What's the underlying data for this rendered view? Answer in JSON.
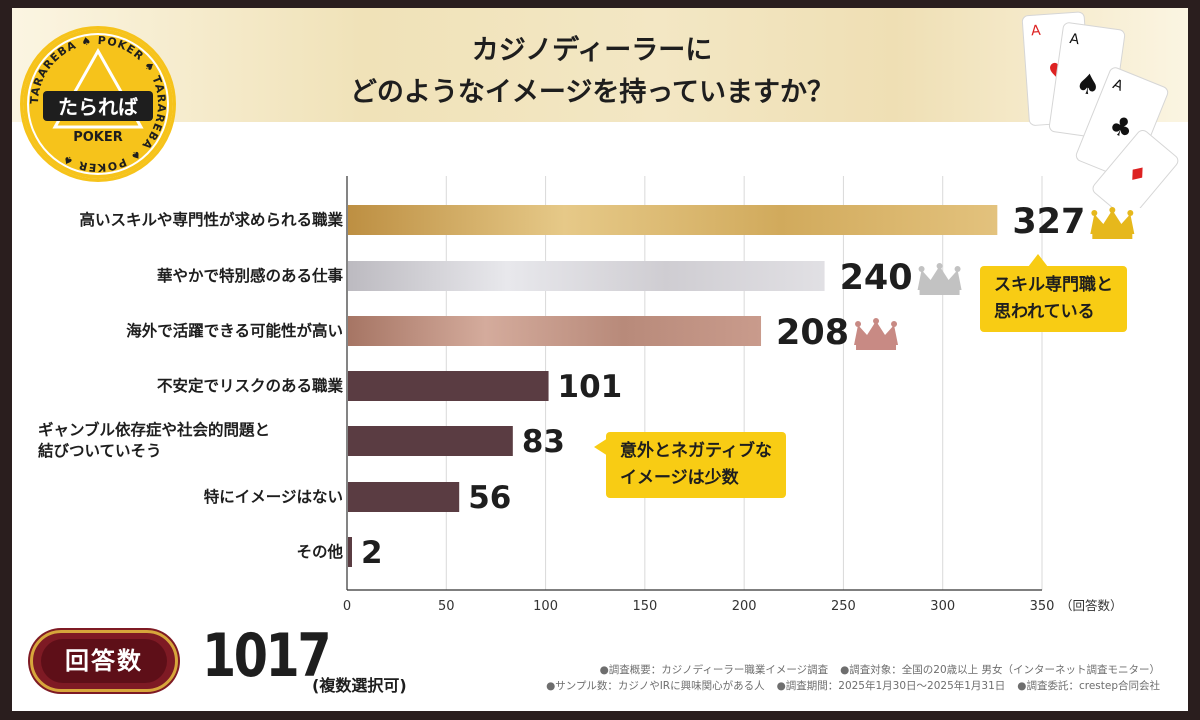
{
  "title": {
    "line1": "カジノディーラーに",
    "line2": "どのようなイメージを持っていますか？"
  },
  "logo": {
    "text": "たられば",
    "sub": "POKER",
    "ring_text": "TARAREBA ♠ POKER ♠ TARAREBA ♠ POKER ♠"
  },
  "chart_data": {
    "type": "bar",
    "orientation": "horizontal",
    "categories": [
      "高いスキルや専門性が求められる職業",
      "華やかで特別感のある仕事",
      "海外で活躍できる可能性が高い",
      "不安定でリスクのある職業",
      "ギャンブル依存症や社会的問題と結びついていそう",
      "特にイメージはない",
      "その他"
    ],
    "category_lines": [
      [
        "高いスキルや専門性が求められる職業"
      ],
      [
        "華やかで特別感のある仕事"
      ],
      [
        "海外で活躍できる可能性が高い"
      ],
      [
        "不安定でリスクのある職業"
      ],
      [
        "ギャンブル依存症や社会的問題と",
        "結びついていそう"
      ],
      [
        "特にイメージはない"
      ],
      [
        "その他"
      ]
    ],
    "values": [
      327,
      240,
      208,
      101,
      83,
      56,
      2
    ],
    "value_labels": [
      "327",
      "240",
      "208",
      "101",
      "83",
      "56",
      "2"
    ],
    "xlim": [
      0,
      350
    ],
    "xticks": [
      0,
      50,
      100,
      150,
      200,
      250,
      300,
      350
    ],
    "xtick_labels": [
      "0",
      "50",
      "100",
      "150",
      "200",
      "250",
      "300",
      "350"
    ],
    "x_unit": "（回答数）",
    "grid": true,
    "medals": [
      "gold",
      "silver",
      "bronze"
    ],
    "colors": {
      "gold": "#c9a04e",
      "silver": "#c7c5cb",
      "bronze": "#b8877a",
      "other": "#5a3c42",
      "crown_gold": "#e6b81c",
      "crown_silver": "#c2c2c2",
      "crown_bronze": "#c88a84"
    }
  },
  "callouts": {
    "top": {
      "line1": "スキル専門職と",
      "line2": "思われている"
    },
    "middle": {
      "line1": "意外とネガティブな",
      "line2": "イメージは少数"
    }
  },
  "total": {
    "label": "回答数",
    "value": "1017",
    "note": "(複数選択可)"
  },
  "footnotes": {
    "line1": [
      "●調査概要：カジノディーラー職業イメージ調査",
      "●調査対象：全国の20歳以上 男女（インターネット調査モニター）"
    ],
    "line2": [
      "●サンプル数：カジノやIRに興味関心がある人",
      "●調査期間：2025年1月30日〜2025年1月31日",
      "●調査委託：crestep合同会社"
    ]
  }
}
